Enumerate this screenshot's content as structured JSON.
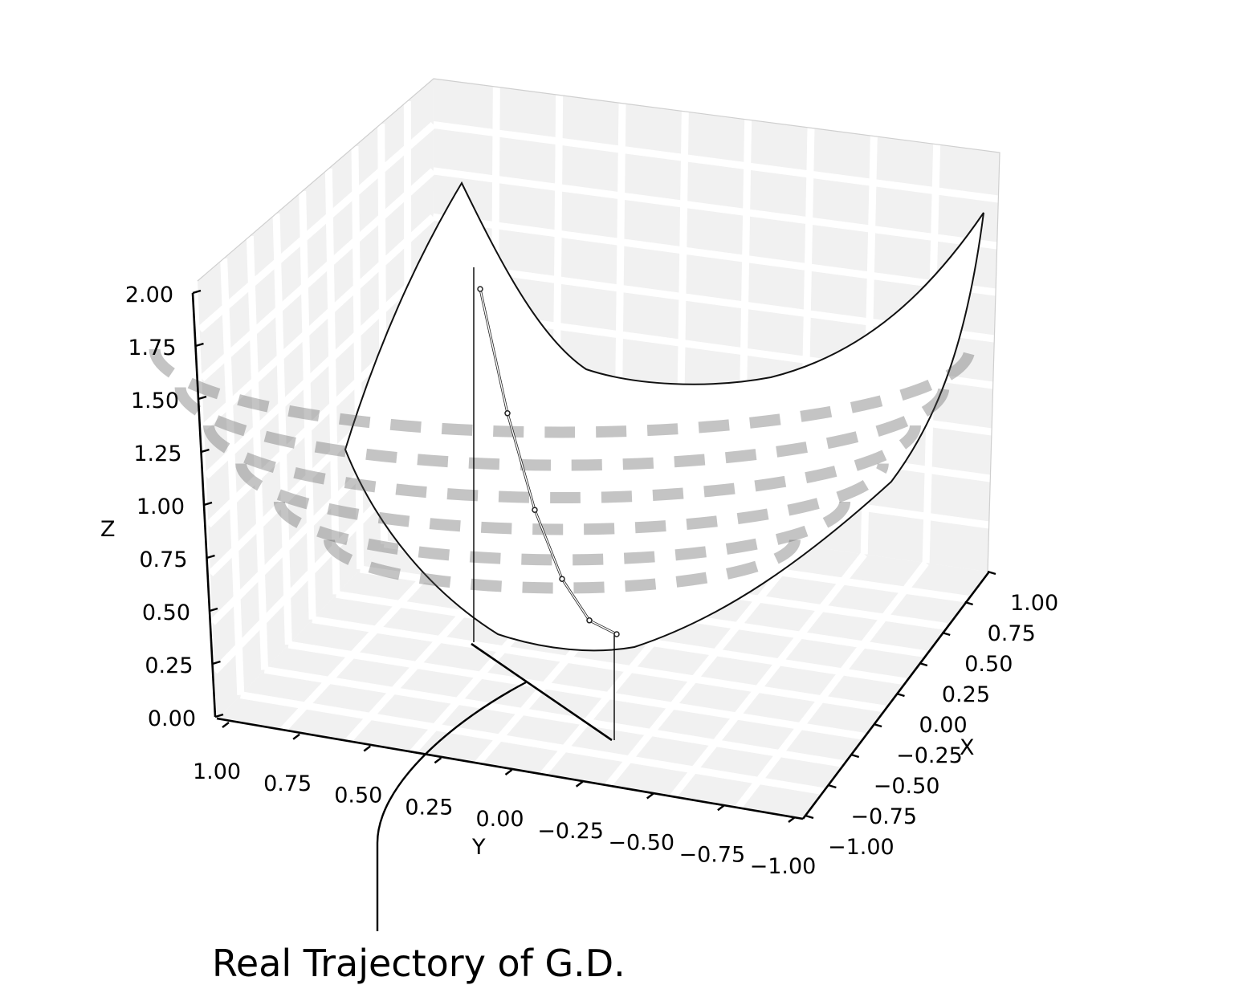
{
  "chart_data": {
    "type": "surface3d",
    "function": "z = x^2 + y^2",
    "x": [
      -1.0,
      1.0
    ],
    "y": [
      -1.0,
      1.0
    ],
    "zlim": [
      0.0,
      2.0
    ],
    "axes": {
      "x": {
        "label": "X",
        "ticks": [
          "−1.00",
          "−0.75",
          "−0.50",
          "−0.25",
          "0.00",
          "0.25",
          "0.50",
          "0.75",
          "1.00"
        ]
      },
      "y": {
        "label": "Y",
        "ticks": [
          "1.00",
          "0.75",
          "0.50",
          "0.25",
          "0.00",
          "−0.25",
          "−0.50",
          "−0.75",
          "−1.00"
        ]
      },
      "z": {
        "label": "Z",
        "ticks": [
          "0.00",
          "0.25",
          "0.50",
          "0.75",
          "1.00",
          "1.25",
          "1.50",
          "1.75",
          "2.00"
        ]
      }
    },
    "grid": true,
    "series": [
      {
        "type": "trajectory",
        "points": [
          {
            "x": -1.0,
            "y": 0.0,
            "z": 1.0
          },
          {
            "x": -0.8,
            "y": 0.0,
            "z": 0.64
          },
          {
            "x": -0.6,
            "y": 0.0,
            "z": 0.36
          },
          {
            "x": -0.4,
            "y": 0.0,
            "z": 0.16
          },
          {
            "x": -0.2,
            "y": 0.0,
            "z": 0.04
          },
          {
            "x": 0.0,
            "y": 0.0,
            "z": 0.0
          }
        ]
      }
    ],
    "annotation": "Real Trajectory of G.D."
  },
  "colors": {
    "pane": "#f1f1f1",
    "surface_shadow": "#6d6d6d",
    "ink": "#000000"
  }
}
